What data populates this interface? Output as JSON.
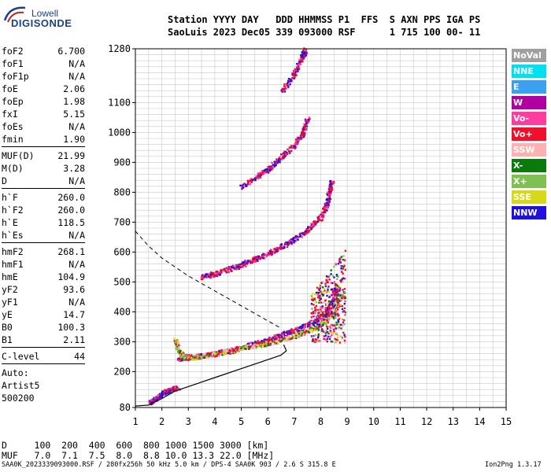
{
  "header": {
    "line1": "Station YYYY DAY   DDD HHMMSS P1  FFS  S AXN PPS IGA PS",
    "line2": "SaoLuis 2023 Dec05 339 093000 RSF      1 715 100 00- 11"
  },
  "logo": {
    "top": "Lowell",
    "main": "DIGISONDE"
  },
  "parameters": [
    [
      {
        "k": "foF2",
        "v": "6.700"
      },
      {
        "k": "foF1",
        "v": "N/A"
      },
      {
        "k": "foF1p",
        "v": "N/A"
      },
      {
        "k": "foE",
        "v": "2.06"
      },
      {
        "k": "foEp",
        "v": "1.98"
      },
      {
        "k": "fxI",
        "v": "5.15"
      },
      {
        "k": "foEs",
        "v": "N/A"
      },
      {
        "k": "fmin",
        "v": "1.90"
      }
    ],
    [
      {
        "k": "MUF(D)",
        "v": "21.99"
      },
      {
        "k": "M(D)",
        "v": "3.28"
      },
      {
        "k": "D",
        "v": "N/A"
      }
    ],
    [
      {
        "k": "h`F",
        "v": "260.0"
      },
      {
        "k": "h`F2",
        "v": "260.0"
      },
      {
        "k": "h`E",
        "v": "118.5"
      },
      {
        "k": "h`Es",
        "v": "N/A"
      }
    ],
    [
      {
        "k": "hmF2",
        "v": "268.1"
      },
      {
        "k": "hmF1",
        "v": "N/A"
      },
      {
        "k": "hmE",
        "v": "104.9"
      },
      {
        "k": "yF2",
        "v": "93.6"
      },
      {
        "k": "yF1",
        "v": "N/A"
      },
      {
        "k": "yE",
        "v": "14.7"
      },
      {
        "k": "B0",
        "v": "100.3"
      },
      {
        "k": "B1",
        "v": "2.11"
      }
    ],
    [
      {
        "k": "C-level",
        "v": "44"
      }
    ]
  ],
  "auto": {
    "label": "Auto:",
    "name": "Artist5",
    "code": "500200"
  },
  "muf_table": {
    "d_row": "D     100  200  400  600  800 1000 1500 3000 [km]",
    "muf_row": "MUF   7.0  7.1  7.5  8.0  8.8 10.0 13.3 22.0 [MHz]"
  },
  "bottom": {
    "left": "SAA0K_2023339093000.RSF / 280fx256h 50 kHz 5.0 km / DPS-4 SAA0K 903 / 2.6 S 315.8 E",
    "right": "Ion2Png 1.3.17"
  },
  "legend": [
    {
      "label": "NoVal",
      "color": "#a0a0a0"
    },
    {
      "label": "NNE",
      "color": "#00e0f0"
    },
    {
      "label": "E",
      "color": "#3ca0f0"
    },
    {
      "label": "W",
      "color": "#b000a0"
    },
    {
      "label": "Vo-",
      "color": "#ff3ca0"
    },
    {
      "label": "Vo+",
      "color": "#f0102a"
    },
    {
      "label": "SSW",
      "color": "#ffb0b0"
    },
    {
      "label": "X-",
      "color": "#0a7a0a"
    },
    {
      "label": "X+",
      "color": "#80c050"
    },
    {
      "label": "SSE",
      "color": "#d8d81a"
    },
    {
      "label": "NNW",
      "color": "#2010e0"
    }
  ],
  "chart_data": {
    "type": "scatter",
    "x_ticks": [
      "1",
      "2",
      "3",
      "4",
      "5",
      "6",
      "7",
      "8",
      "9",
      "10",
      "11",
      "12",
      "13",
      "14",
      "15"
    ],
    "y_ticks": [
      "80",
      "200",
      "300",
      "400",
      "500",
      "600",
      "700",
      "800",
      "900",
      "1000",
      "1100",
      "1280"
    ],
    "xlim": [
      1,
      15
    ],
    "ylim": [
      80,
      1280
    ],
    "grid": true,
    "legend_placement": "right",
    "traces": [
      {
        "mode": "O",
        "points": [
          [
            2.6,
            245
          ],
          [
            3.0,
            248
          ],
          [
            3.5,
            255
          ],
          [
            4.0,
            263
          ],
          [
            4.5,
            272
          ],
          [
            5.0,
            283
          ],
          [
            5.5,
            295
          ],
          [
            6.0,
            308
          ],
          [
            6.5,
            325
          ],
          [
            7.0,
            340
          ],
          [
            7.5,
            360
          ],
          [
            8.0,
            385
          ],
          [
            8.3,
            415
          ],
          [
            8.5,
            450
          ],
          [
            8.6,
            490
          ]
        ]
      },
      {
        "mode": "X",
        "points": [
          [
            2.5,
            310
          ],
          [
            2.6,
            270
          ],
          [
            2.8,
            252
          ],
          [
            3.2,
            250
          ],
          [
            3.8,
            258
          ],
          [
            4.4,
            268
          ],
          [
            5.0,
            280
          ],
          [
            5.6,
            290
          ],
          [
            6.2,
            300
          ],
          [
            6.8,
            315
          ],
          [
            7.4,
            335
          ],
          [
            8.0,
            362
          ],
          [
            8.5,
            400
          ],
          [
            8.8,
            460
          ]
        ]
      },
      {
        "mode": "O",
        "points": [
          [
            3.5,
            518
          ],
          [
            4.0,
            530
          ],
          [
            4.5,
            545
          ],
          [
            5.0,
            560
          ],
          [
            5.5,
            578
          ],
          [
            6.0,
            598
          ],
          [
            6.5,
            620
          ],
          [
            7.0,
            645
          ],
          [
            7.5,
            680
          ],
          [
            8.0,
            720
          ],
          [
            8.2,
            760
          ],
          [
            8.3,
            800
          ],
          [
            8.4,
            840
          ]
        ]
      },
      {
        "mode": "O",
        "points": [
          [
            5.0,
            820
          ],
          [
            5.5,
            850
          ],
          [
            6.0,
            880
          ],
          [
            6.5,
            920
          ],
          [
            7.0,
            960
          ],
          [
            7.3,
            1000
          ],
          [
            7.5,
            1050
          ]
        ]
      },
      {
        "mode": "O",
        "points": [
          [
            6.5,
            1140
          ],
          [
            7.0,
            1200
          ],
          [
            7.2,
            1240
          ],
          [
            7.4,
            1280
          ]
        ]
      },
      {
        "mode": "O",
        "points": [
          [
            1.5,
            95
          ],
          [
            1.8,
            115
          ],
          [
            2.0,
            130
          ],
          [
            2.3,
            140
          ],
          [
            2.6,
            150
          ]
        ]
      }
    ],
    "profile": [
      [
        1.0,
        85
      ],
      [
        1.5,
        88
      ],
      [
        2.0,
        110
      ],
      [
        2.5,
        135
      ],
      [
        3.0,
        150
      ],
      [
        4.0,
        180
      ],
      [
        5.0,
        210
      ],
      [
        6.0,
        240
      ],
      [
        6.5,
        255
      ],
      [
        6.7,
        270
      ],
      [
        6.6,
        290
      ]
    ],
    "dashed": [
      [
        1.0,
        670
      ],
      [
        1.5,
        620
      ],
      [
        2.0,
        580
      ],
      [
        2.5,
        550
      ],
      [
        3.0,
        520
      ],
      [
        4.0,
        470
      ],
      [
        5.0,
        420
      ],
      [
        6.0,
        370
      ],
      [
        6.5,
        345
      ]
    ]
  }
}
